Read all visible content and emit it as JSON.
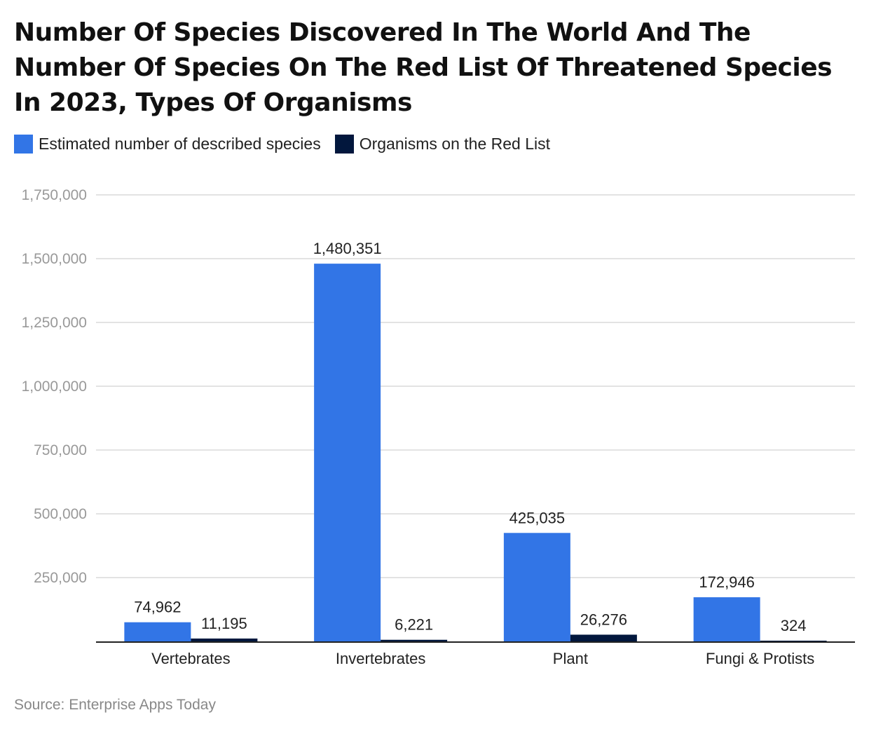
{
  "chart_data": {
    "type": "bar",
    "title": "Number Of Species Discovered In The World And The Number Of Species On The Red List Of Threatened Species In 2023, Types Of Organisms",
    "xlabel": "",
    "ylabel": "",
    "ylim": [
      0,
      1750000
    ],
    "yticks": [
      250000,
      500000,
      750000,
      1000000,
      1250000,
      1500000,
      1750000
    ],
    "ytick_labels": [
      "250,000",
      "500,000",
      "750,000",
      "1,000,000",
      "1,250,000",
      "1,500,000",
      "1,750,000"
    ],
    "grid": true,
    "legend_position": "top-left",
    "categories": [
      "Vertebrates",
      "Invertebrates",
      "Plant",
      "Fungi & Protists"
    ],
    "series": [
      {
        "name": "Estimated number of described species",
        "color": "#3275E6",
        "values": [
          74962,
          1480351,
          425035,
          172946
        ],
        "labels": [
          "74,962",
          "1,480,351",
          "425,035",
          "172,946"
        ]
      },
      {
        "name": "Organisms on the Red List",
        "color": "#02173D",
        "values": [
          11195,
          6221,
          26276,
          324
        ],
        "labels": [
          "11,195",
          "6,221",
          "26,276",
          "324"
        ]
      }
    ],
    "source": "Source: Enterprise Apps Today"
  }
}
